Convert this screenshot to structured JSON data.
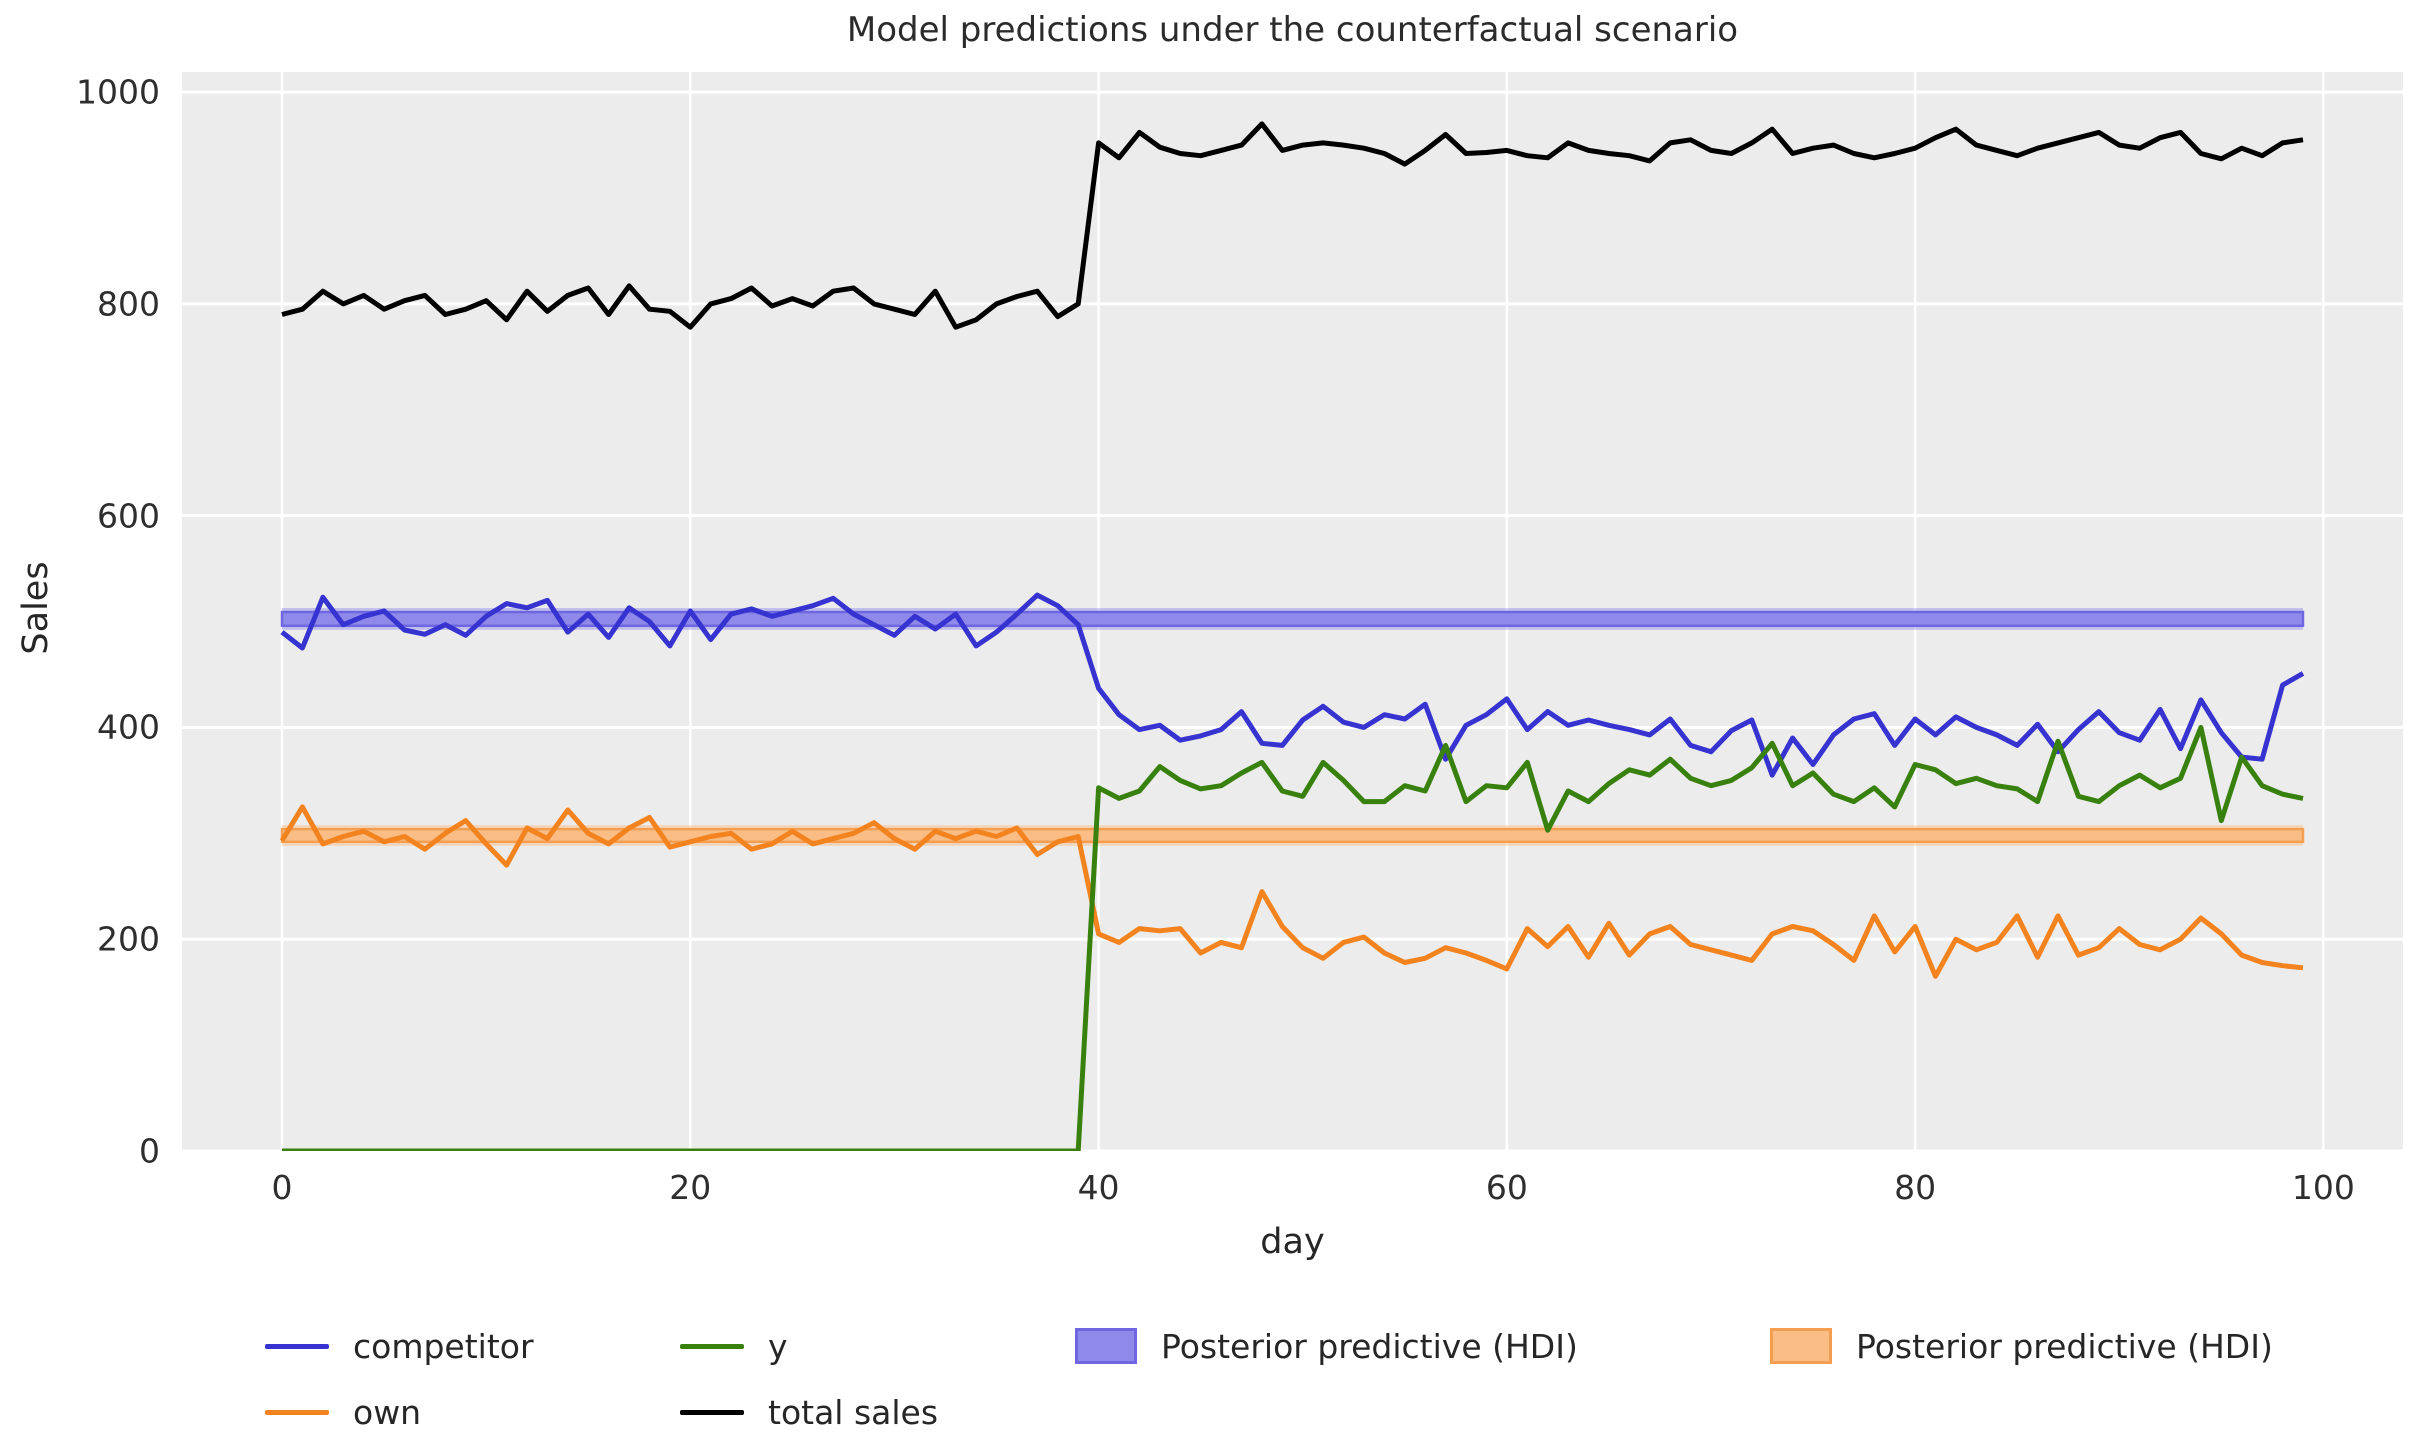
{
  "figure": {
    "title": "Model predictions under the counterfactual scenario",
    "xlabel": "day",
    "ylabel": "Sales"
  },
  "colors": {
    "plot_background": "#ececec",
    "gridline": "#ffffff",
    "text": "#262626"
  },
  "chart_data": {
    "type": "line",
    "title": "Model predictions under the counterfactual scenario",
    "xlabel": "day",
    "ylabel": "Sales",
    "grid": true,
    "legend_position": "below",
    "xlim": [
      -4.9,
      103.9
    ],
    "ylim": [
      0,
      1019
    ],
    "xticks": [
      0,
      20,
      40,
      60,
      80,
      100
    ],
    "yticks": [
      0,
      200,
      400,
      600,
      800,
      1000
    ],
    "x_start": 0,
    "x_step": 1,
    "n_points": 100,
    "series": [
      {
        "name": "competitor",
        "color": "#3633d0",
        "values": [
          490,
          475,
          523,
          497,
          505,
          510,
          492,
          488,
          497,
          487,
          505,
          517,
          513,
          520,
          490,
          507,
          485,
          513,
          500,
          477,
          510,
          483,
          507,
          512,
          505,
          510,
          515,
          522,
          507,
          497,
          487,
          505,
          493,
          507,
          477,
          490,
          507,
          525,
          515,
          497,
          437,
          412,
          398,
          402,
          388,
          392,
          398,
          415,
          385,
          383,
          407,
          420,
          405,
          400,
          412,
          408,
          422,
          370,
          402,
          412,
          427,
          398,
          415,
          402,
          407,
          402,
          398,
          393,
          408,
          383,
          377,
          397,
          407,
          355,
          390,
          365,
          393,
          408,
          413,
          383,
          408,
          393,
          410,
          400,
          393,
          383,
          403,
          377,
          398,
          415,
          395,
          388,
          417,
          380,
          426,
          395,
          372,
          370,
          440,
          451
        ]
      },
      {
        "name": "own",
        "color": "#f3831f",
        "values": [
          293,
          325,
          290,
          297,
          302,
          292,
          297,
          285,
          300,
          312,
          290,
          270,
          305,
          295,
          322,
          300,
          290,
          305,
          315,
          287,
          292,
          297,
          300,
          285,
          290,
          302,
          290,
          295,
          300,
          310,
          295,
          285,
          302,
          295,
          302,
          297,
          305,
          280,
          292,
          297,
          205,
          197,
          210,
          208,
          210,
          187,
          197,
          192,
          245,
          212,
          192,
          182,
          197,
          202,
          187,
          178,
          182,
          192,
          187,
          180,
          172,
          210,
          193,
          212,
          183,
          215,
          185,
          205,
          212,
          195,
          190,
          185,
          180,
          205,
          212,
          208,
          195,
          180,
          222,
          188,
          212,
          165,
          200,
          190,
          197,
          222,
          183,
          222,
          185,
          192,
          210,
          195,
          190,
          200,
          220,
          205,
          185,
          178,
          175,
          173
        ]
      },
      {
        "name": "y",
        "color": "#38810f",
        "values": [
          0,
          0,
          0,
          0,
          0,
          0,
          0,
          0,
          0,
          0,
          0,
          0,
          0,
          0,
          0,
          0,
          0,
          0,
          0,
          0,
          0,
          0,
          0,
          0,
          0,
          0,
          0,
          0,
          0,
          0,
          0,
          0,
          0,
          0,
          0,
          0,
          0,
          0,
          0,
          0,
          343,
          333,
          340,
          363,
          350,
          342,
          345,
          357,
          367,
          340,
          335,
          367,
          350,
          330,
          330,
          345,
          340,
          383,
          330,
          345,
          343,
          367,
          303,
          340,
          330,
          347,
          360,
          355,
          370,
          352,
          345,
          350,
          362,
          385,
          345,
          357,
          337,
          330,
          343,
          325,
          365,
          360,
          347,
          352,
          345,
          342,
          330,
          387,
          335,
          330,
          345,
          355,
          343,
          352,
          400,
          312,
          372,
          345,
          337,
          333
        ]
      },
      {
        "name": "total sales",
        "color": "#000000",
        "values": [
          790,
          795,
          812,
          800,
          808,
          795,
          803,
          808,
          790,
          795,
          803,
          785,
          812,
          793,
          808,
          815,
          790,
          817,
          795,
          793,
          778,
          800,
          805,
          815,
          798,
          805,
          798,
          812,
          815,
          800,
          795,
          790,
          812,
          778,
          785,
          800,
          807,
          812,
          788,
          800,
          952,
          938,
          962,
          948,
          942,
          940,
          945,
          950,
          970,
          945,
          950,
          952,
          950,
          947,
          942,
          932,
          945,
          960,
          942,
          943,
          945,
          940,
          938,
          952,
          945,
          942,
          940,
          935,
          952,
          955,
          945,
          942,
          952,
          965,
          942,
          947,
          950,
          942,
          938,
          942,
          947,
          957,
          965,
          950,
          945,
          940,
          947,
          952,
          957,
          962,
          950,
          947,
          957,
          962,
          942,
          937,
          947,
          940,
          952,
          955
        ]
      }
    ],
    "bands": [
      {
        "name": "Posterior predictive (HDI)",
        "fill": "#8f89ea",
        "edge": "#6e67e1",
        "lo": 496,
        "hi": 509,
        "x0": 0,
        "x1": 99
      },
      {
        "name": "Posterior predictive (HDI)",
        "fill": "#f9bd85",
        "edge": "#f49e52",
        "lo": 292,
        "hi": 304,
        "x0": 0,
        "x1": 99
      }
    ],
    "legend": [
      {
        "label": "competitor",
        "type": "line",
        "color": "#3633d0"
      },
      {
        "label": "own",
        "type": "line",
        "color": "#f3831f"
      },
      {
        "label": "y",
        "type": "line",
        "color": "#38810f"
      },
      {
        "label": "total sales",
        "type": "line",
        "color": "#000000"
      },
      {
        "label": "Posterior predictive (HDI)",
        "type": "patch",
        "fill": "#8f89ea",
        "edge": "#6e67e1"
      },
      {
        "label": "Posterior predictive (HDI)",
        "type": "patch",
        "fill": "#f9bd85",
        "edge": "#f49e52"
      }
    ]
  }
}
